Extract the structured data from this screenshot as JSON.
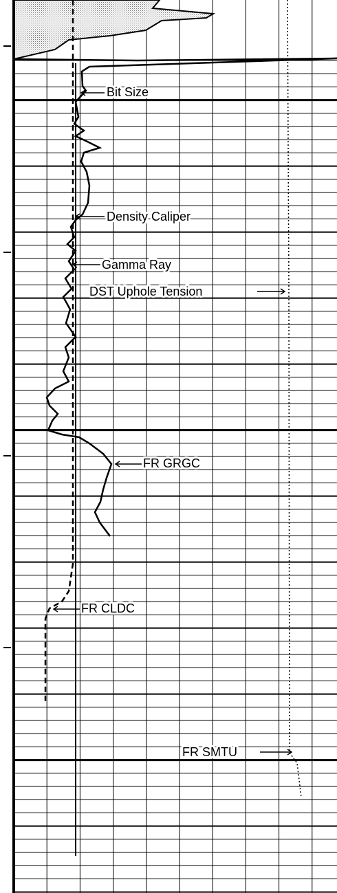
{
  "labels": [
    "Bit Size",
    "Density Caliper",
    "Gamma Ray",
    "DST Uphole Tension",
    "FR GRGC",
    "FR CLDC",
    "FR SMTU"
  ]
}
